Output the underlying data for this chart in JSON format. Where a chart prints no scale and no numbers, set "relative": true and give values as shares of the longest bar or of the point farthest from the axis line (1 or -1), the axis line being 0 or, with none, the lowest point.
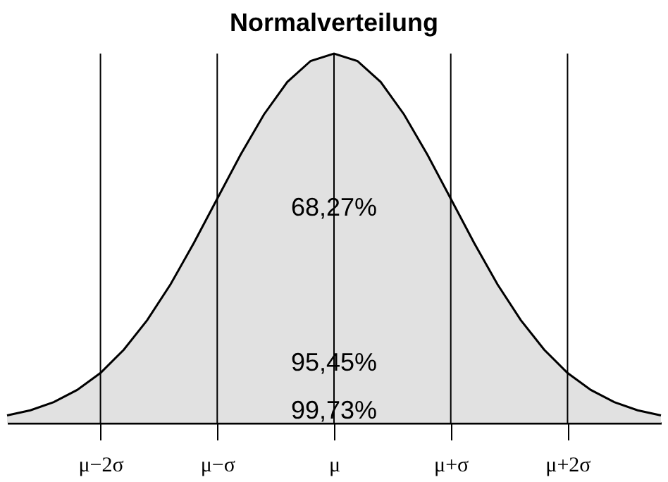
{
  "chart_data": {
    "type": "area",
    "title": "Normalverteilung",
    "relative": true,
    "categories": [
      null,
      null,
      null,
      null,
      "μ−2σ",
      null,
      null,
      null,
      null,
      "μ−σ",
      null,
      null,
      null,
      null,
      "μ",
      null,
      null,
      null,
      null,
      "μ+σ",
      null,
      null,
      null,
      null,
      "μ+2σ",
      null,
      null,
      null,
      null
    ],
    "series": [
      {
        "color": "#d4d4d4",
        "values": [
          0.02,
          0.034,
          0.056,
          0.089,
          0.135,
          0.198,
          0.278,
          0.375,
          0.487,
          0.607,
          0.726,
          0.835,
          0.923,
          0.98,
          1,
          0.98,
          0.923,
          0.835,
          0.726,
          0.607,
          0.487,
          0.375,
          0.278,
          0.198,
          0.135,
          0.089,
          0.056,
          0.034,
          0.02
        ]
      }
    ],
    "ref_lines": [
      {
        "axis": "x",
        "value": "μ−2σ"
      },
      {
        "axis": "x",
        "value": "μ−σ"
      },
      {
        "axis": "x",
        "value": "μ"
      },
      {
        "axis": "x",
        "value": "μ+σ"
      },
      {
        "axis": "x",
        "value": "μ+2σ"
      }
    ],
    "annotations": [
      "68,27%",
      "95,45%",
      "99,73%"
    ],
    "grid": false
  }
}
